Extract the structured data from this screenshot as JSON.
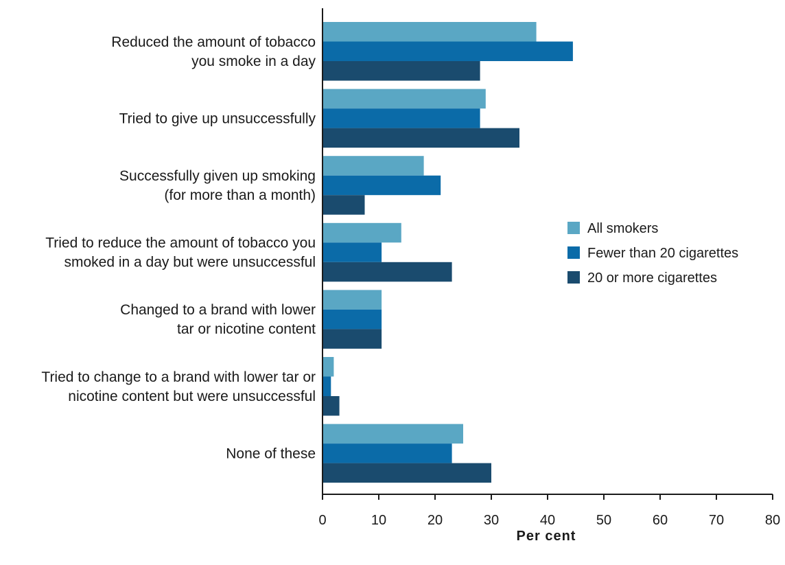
{
  "chart_data": {
    "type": "bar",
    "orientation": "horizontal",
    "categories": [
      [
        "Reduced the amount of tobacco",
        "you smoke in a day"
      ],
      [
        "Tried to give up unsuccessfully"
      ],
      [
        "Successfully given up smoking",
        "(for more than a month)"
      ],
      [
        "Tried to reduce the amount of tobacco you",
        "smoked in a day but were unsuccessful"
      ],
      [
        "Changed to a brand with lower",
        "tar or nicotine content"
      ],
      [
        "Tried to change to a brand with lower tar or",
        "nicotine content but were unsuccessful"
      ],
      [
        "None of these"
      ]
    ],
    "series": [
      {
        "name": "All smokers",
        "color": "#5aa7c4",
        "values": [
          38,
          29,
          18,
          14,
          10.5,
          2,
          25
        ]
      },
      {
        "name": "Fewer than 20 cigarettes",
        "color": "#0b6ba8",
        "values": [
          44.5,
          28,
          21,
          10.5,
          10.5,
          1.5,
          23
        ]
      },
      {
        "name": "20 or more cigarettes",
        "color": "#1a4b6e",
        "values": [
          28,
          35,
          7.5,
          23,
          10.5,
          3,
          30
        ]
      }
    ],
    "xlabel": "Per cent",
    "ylabel": "",
    "xlim": [
      0,
      80
    ],
    "xticks": [
      "0",
      "10",
      "20",
      "30",
      "40",
      "50",
      "60",
      "70",
      "80"
    ],
    "legend_position": "right",
    "grid": false
  }
}
